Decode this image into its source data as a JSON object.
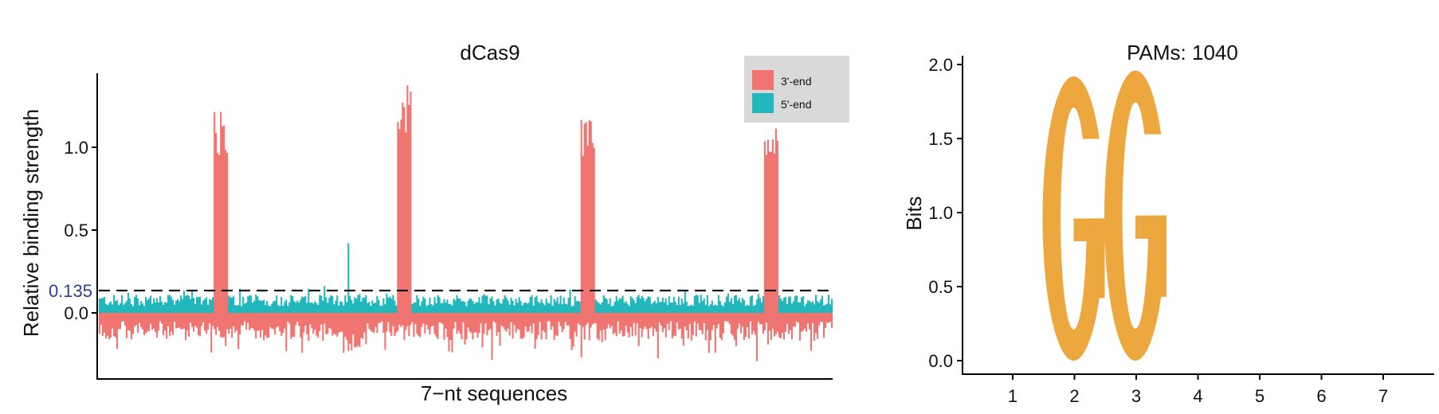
{
  "chart_data": [
    {
      "type": "bar",
      "title": "dCas9",
      "xlabel": "7−nt sequences",
      "ylabel": "Relative binding strength",
      "ylim": [
        -0.4,
        1.45
      ],
      "yticks": [
        0.0,
        0.5,
        1.0
      ],
      "ytick_labels": [
        "0.0",
        "0.5",
        "1.0"
      ],
      "threshold": {
        "value": 0.135,
        "label": "0.135",
        "color": "#2a3f8f",
        "style": "dashed"
      },
      "legend_position": "top-right",
      "series": [
        {
          "name": "3'-end",
          "color": "#f07470",
          "baseline_range": [
            -0.35,
            0.0
          ],
          "peaks": [
            {
              "x_fraction": 0.165,
              "max": 1.22
            },
            {
              "x_fraction": 0.415,
              "max": 1.38
            },
            {
              "x_fraction": 0.665,
              "max": 1.17
            },
            {
              "x_fraction": 0.915,
              "max": 1.15
            }
          ]
        },
        {
          "name": "5'-end",
          "color": "#22b7bd",
          "baseline_range": [
            0.0,
            0.15
          ],
          "outlier": {
            "x_fraction": 0.34,
            "max": 0.42
          }
        }
      ],
      "grid": false
    },
    {
      "type": "sequence_logo",
      "title": "PAMs: 1040",
      "ylabel": "Bits",
      "ylim": [
        0,
        2.1
      ],
      "yticks": [
        0.0,
        0.5,
        1.0,
        1.5,
        2.0
      ],
      "ytick_labels": [
        "0.0",
        "0.5",
        "1.0",
        "1.5",
        "2.0"
      ],
      "positions": [
        "1",
        "2",
        "3",
        "4",
        "5",
        "6",
        "7"
      ],
      "letters": [
        {
          "position": "2",
          "letter": "G",
          "bits": 1.92,
          "color": "#eca73e"
        },
        {
          "position": "3",
          "letter": "G",
          "bits": 1.96,
          "color": "#eca73e"
        }
      ],
      "grid": false
    }
  ]
}
